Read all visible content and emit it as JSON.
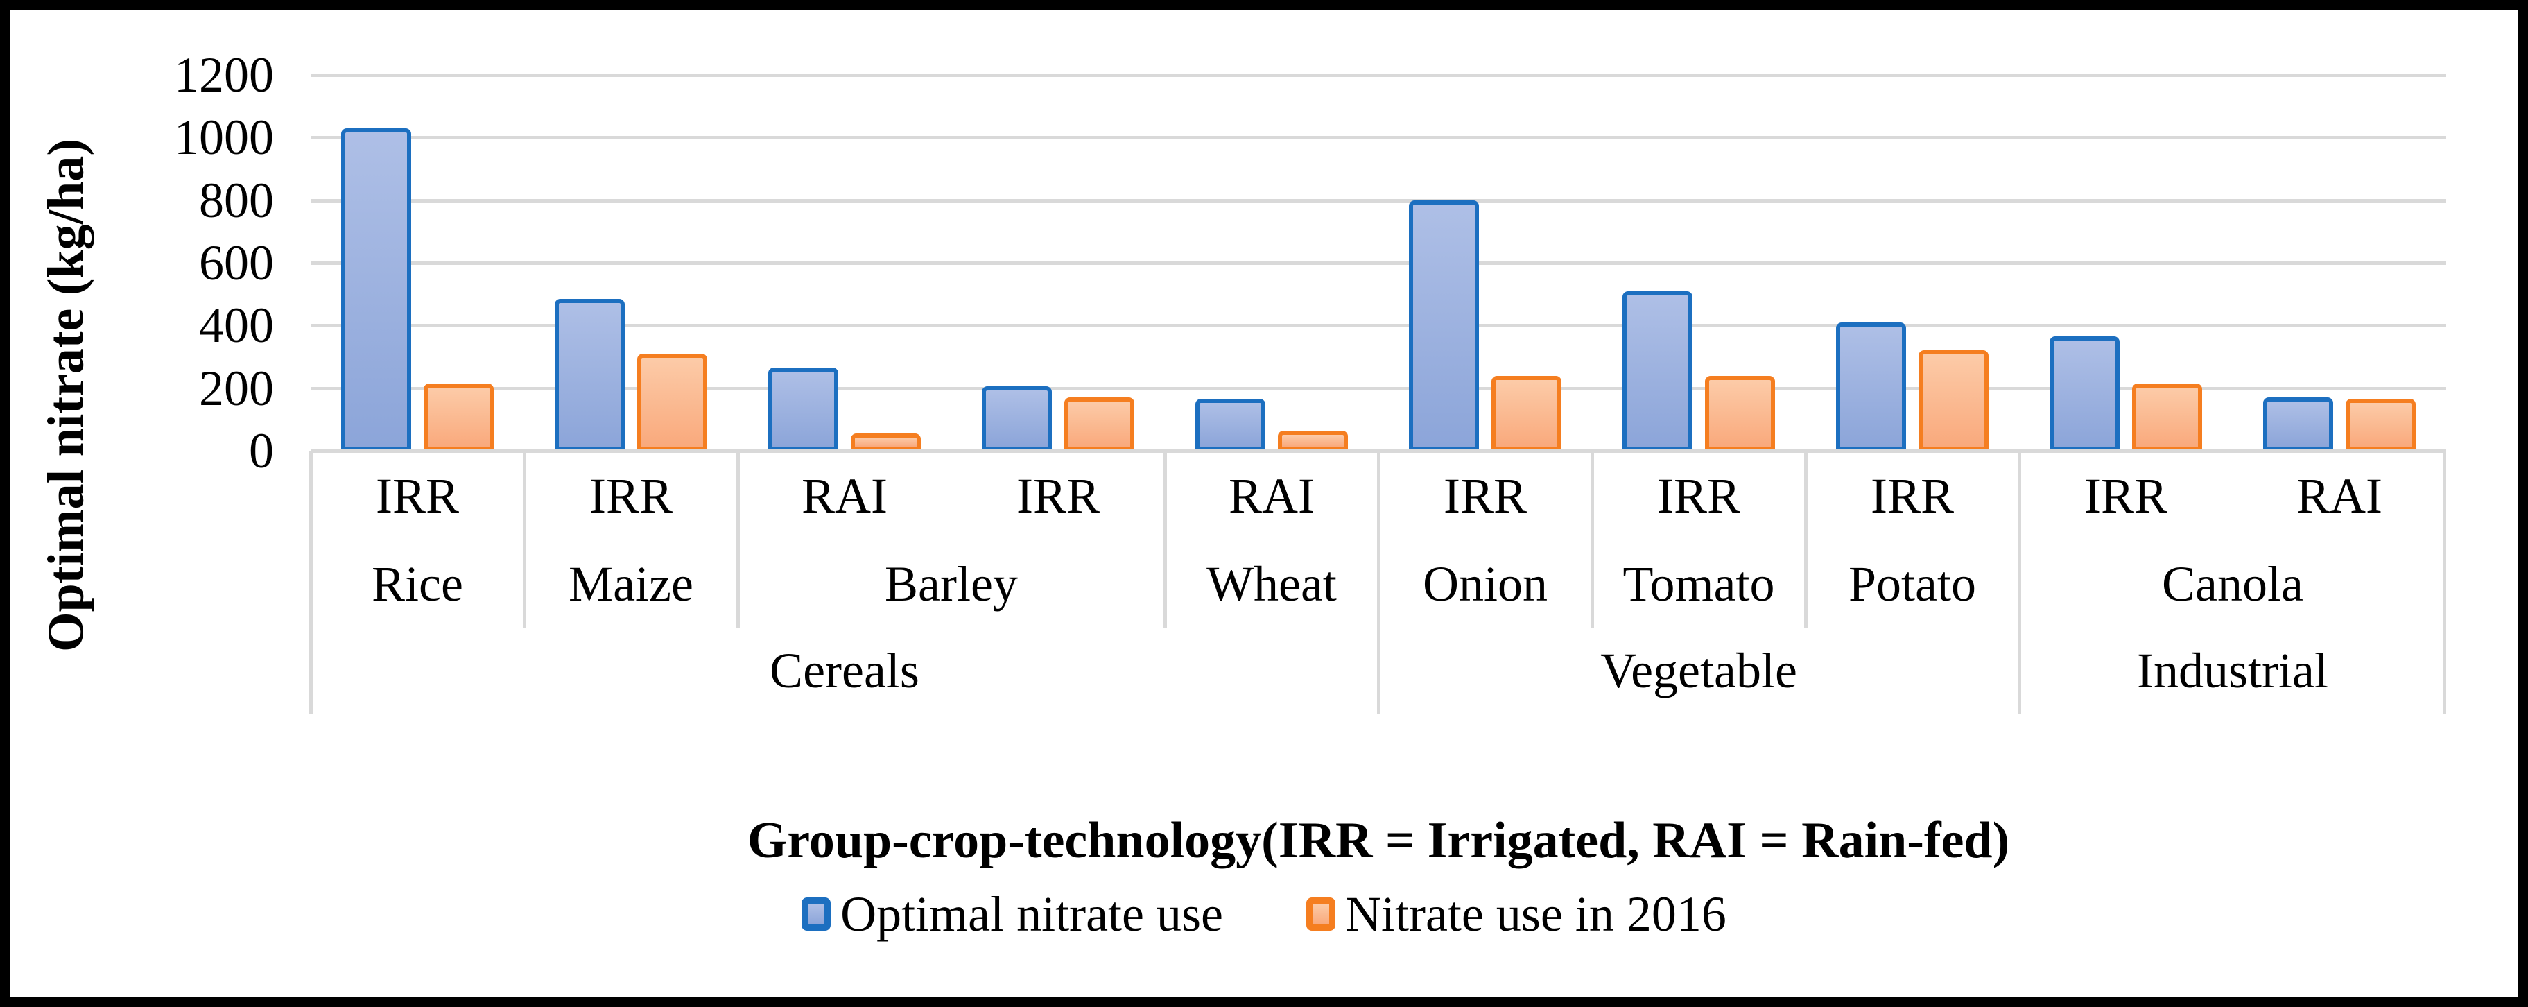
{
  "chart_data": {
    "type": "bar",
    "title": "",
    "ylabel": "Optimal nitrate (kg/ha)",
    "xlabel": "Group-crop-technology(IRR = Irrigated, RAI = Rain-fed)",
    "ylim": [
      0,
      1200
    ],
    "ytick_values": [
      1200,
      1000,
      800,
      600,
      400,
      200,
      0
    ],
    "ytick_labels": [
      "1200",
      "1000",
      "800",
      "600",
      "400",
      "200",
      "0"
    ],
    "grid": true,
    "legend_position": "bottom",
    "categories": [
      "Rice-IRR",
      "Maize-IRR",
      "Barley-RAI",
      "Barley-IRR",
      "Wheat-RAI",
      "Onion-IRR",
      "Tomato-IRR",
      "Potato-IRR",
      "Canola-IRR",
      "Canola-RAI"
    ],
    "tech_row": [
      "IRR",
      "IRR",
      "RAI",
      "IRR",
      "RAI",
      "IRR",
      "IRR",
      "IRR",
      "IRR",
      "RAI"
    ],
    "crop_row": [
      {
        "label": "Rice",
        "span": 1
      },
      {
        "label": "Maize",
        "span": 1
      },
      {
        "label": "Barley",
        "span": 2
      },
      {
        "label": "Wheat",
        "span": 1
      },
      {
        "label": "Onion",
        "span": 1
      },
      {
        "label": "Tomato",
        "span": 1
      },
      {
        "label": "Potato",
        "span": 1
      },
      {
        "label": "Canola",
        "span": 2
      }
    ],
    "group_row": [
      {
        "label": "Cereals",
        "span": 5
      },
      {
        "label": "Vegetable",
        "span": 3
      },
      {
        "label": "Industrial",
        "span": 2
      }
    ],
    "series": [
      {
        "name": "Optimal nitrate use",
        "values": [
          1030,
          485,
          265,
          205,
          165,
          800,
          510,
          410,
          365,
          170
        ],
        "border_color": "#1C6FC0",
        "fill_top": "#AEBFE6",
        "fill_bottom": "#8CA5D9"
      },
      {
        "name": "Nitrate use in 2016",
        "values": [
          215,
          310,
          55,
          170,
          65,
          240,
          240,
          320,
          215,
          165
        ],
        "border_color": "#F57E20",
        "fill_top": "#FCCBA8",
        "fill_bottom": "#F9A97C"
      }
    ]
  },
  "colors": {
    "gridline": "#D9D9D9",
    "figure_border": "#000000",
    "background": "#FFFFFF",
    "text": "#000000"
  }
}
